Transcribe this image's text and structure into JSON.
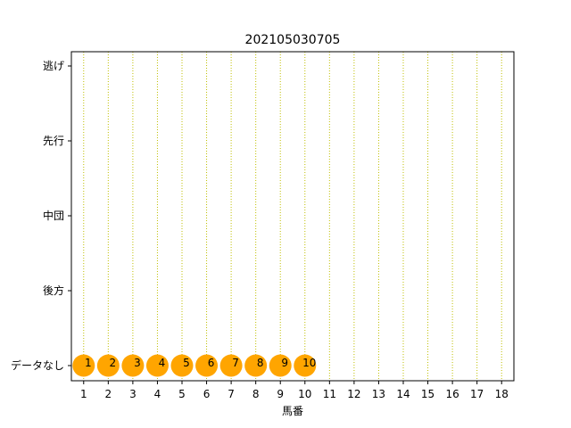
{
  "chart_data": {
    "type": "scatter",
    "title": "202105030705",
    "xlabel": "馬番",
    "ylabel": "",
    "xlim": [
      0.5,
      18.5
    ],
    "x_ticks": [
      1,
      2,
      3,
      4,
      5,
      6,
      7,
      8,
      9,
      10,
      11,
      12,
      13,
      14,
      15,
      16,
      17,
      18
    ],
    "y_categories": [
      "データなし",
      "後方",
      "中団",
      "先行",
      "逃げ"
    ],
    "grid": "vertical dotted",
    "marker_color": "#FFA500",
    "grid_color": "#BFBF00",
    "points": [
      {
        "x": 1,
        "y": "データなし",
        "label": "1"
      },
      {
        "x": 2,
        "y": "データなし",
        "label": "2"
      },
      {
        "x": 3,
        "y": "データなし",
        "label": "3"
      },
      {
        "x": 4,
        "y": "データなし",
        "label": "4"
      },
      {
        "x": 5,
        "y": "データなし",
        "label": "5"
      },
      {
        "x": 6,
        "y": "データなし",
        "label": "6"
      },
      {
        "x": 7,
        "y": "データなし",
        "label": "7"
      },
      {
        "x": 8,
        "y": "データなし",
        "label": "8"
      },
      {
        "x": 9,
        "y": "データなし",
        "label": "9"
      },
      {
        "x": 10,
        "y": "データなし",
        "label": "10"
      }
    ]
  }
}
